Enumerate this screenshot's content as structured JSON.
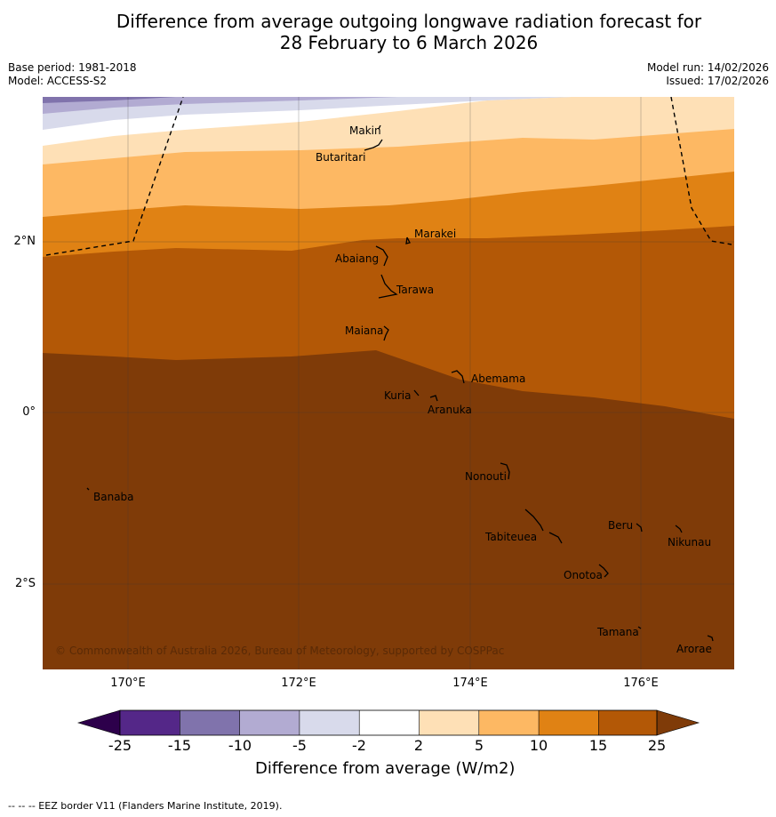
{
  "title": {
    "line1": "Difference from average outgoing longwave radiation forecast for",
    "line2": "28 February to 6 March 2026"
  },
  "meta": {
    "base_period": "Base period: 1981-2018",
    "model": "Model: ACCESS-S2",
    "model_run": "Model run: 14/02/2026",
    "issued": "Issued: 17/02/2026"
  },
  "map": {
    "lat_labels": [
      "2°N",
      "0°",
      "2°S"
    ],
    "lon_labels": [
      "170°E",
      "172°E",
      "174°E",
      "176°E"
    ],
    "copyright": "© Commonwealth of Australia 2026, Bureau of Meteorology, supported by COSPPac",
    "islands": [
      {
        "name": "Makin"
      },
      {
        "name": "Butaritari"
      },
      {
        "name": "Marakei"
      },
      {
        "name": "Abaiang"
      },
      {
        "name": "Tarawa"
      },
      {
        "name": "Maiana"
      },
      {
        "name": "Abemama"
      },
      {
        "name": "Kuria"
      },
      {
        "name": "Aranuka"
      },
      {
        "name": "Nonouti"
      },
      {
        "name": "Banaba"
      },
      {
        "name": "Beru"
      },
      {
        "name": "Tabiteuea"
      },
      {
        "name": "Nikunau"
      },
      {
        "name": "Onotoa"
      },
      {
        "name": "Tamana"
      },
      {
        "name": "Arorae"
      }
    ]
  },
  "colorbar": {
    "title": "Difference from average (W/m2)",
    "ticks": [
      "-25",
      "-15",
      "-10",
      "-5",
      "-2",
      "2",
      "5",
      "10",
      "15",
      "25"
    ],
    "colors": {
      "under": "#2d004b",
      "c1": "#542788",
      "c2": "#8073ac",
      "c3": "#b2abd2",
      "c4": "#d8daeb",
      "c5": "#ffffff",
      "c6": "#fee0b6",
      "c7": "#fdb863",
      "c8": "#e08214",
      "c9": "#b35806",
      "over": "#7f3b08"
    }
  },
  "footer": "--  --  -- EEZ border V11 (Flanders Marine Institute, 2019)."
}
